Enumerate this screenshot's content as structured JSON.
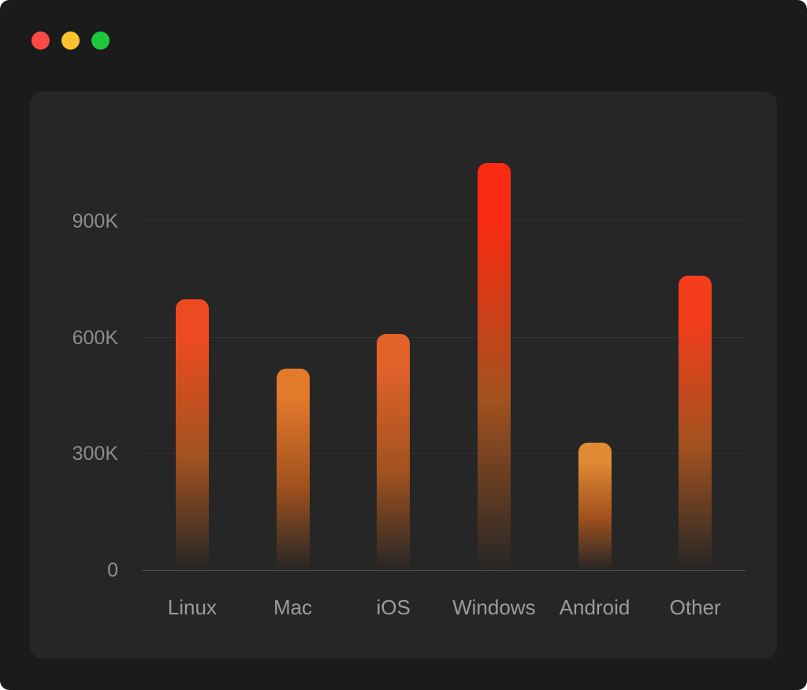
{
  "window": {
    "background": "#1b1b1b",
    "traffic_lights": [
      {
        "name": "close-button",
        "color": "#fb4a43"
      },
      {
        "name": "minimize-button",
        "color": "#fdc32e"
      },
      {
        "name": "zoom-button",
        "color": "#1fc73e"
      }
    ]
  },
  "panel": {
    "background": "#262626",
    "gridline_color": "rgba(255,255,255,0.06)",
    "axis_line_color": "#505050",
    "ytick_color": "#8d8d8d",
    "category_label_color": "#9c9c9c"
  },
  "chart_data": {
    "type": "bar",
    "title": "",
    "xlabel": "",
    "ylabel": "",
    "categories": [
      "Linux",
      "Mac",
      "iOS",
      "Windows",
      "Android",
      "Other"
    ],
    "values": [
      700,
      520,
      610,
      1050,
      330,
      760
    ],
    "value_unit": "K",
    "ylim": [
      0,
      1130
    ],
    "yticks": [
      {
        "value": 0,
        "label": "0"
      },
      {
        "value": 300,
        "label": "300K"
      },
      {
        "value": 600,
        "label": "600K"
      },
      {
        "value": 900,
        "label": "900K"
      }
    ],
    "grid": true,
    "legend": false,
    "bar_top_colors": [
      "#ed4b1f",
      "#e3792b",
      "#e2622a",
      "#fa2b12",
      "#e28a33",
      "#f43d1b"
    ],
    "bar_mid_color": "#a2521f",
    "bar_fade_color": "rgba(38,38,38,0)"
  }
}
